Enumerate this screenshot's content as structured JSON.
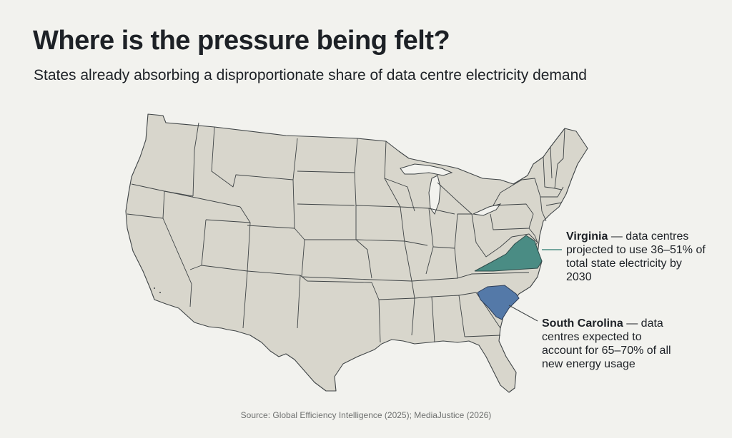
{
  "title": "Where is the pressure being felt?",
  "subtitle": "States already absorbing a disproportionate share of data centre electricity demand",
  "highlights": [
    {
      "state": "Virginia",
      "text": " — data centres projected to use 36–51% of total state electricity by 2030",
      "color": "#4a8c84"
    },
    {
      "state": "South Carolina",
      "text": " — data centres expected to account for 65–70% of all new energy usage",
      "color": "#5479a8"
    }
  ],
  "map_colors": {
    "land": "#d8d6cc",
    "borders": "#3f4446",
    "background": "#f2f2ee"
  },
  "source": "Source: Global Efficiency Intelligence (2025); MediaJustice (2026)"
}
